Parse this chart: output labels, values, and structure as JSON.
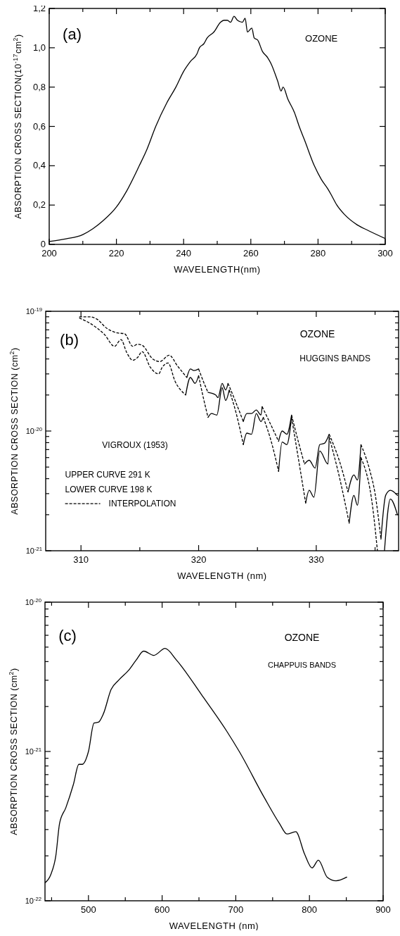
{
  "chart_data": [
    {
      "type": "line",
      "xlabel": "WAVELENGTH(nm)",
      "ylabel": "ABSORPTION CROSS SECTION(10$^{-17}$cm$^{2}$)",
      "annotations": [
        "(a)",
        "OZONE"
      ],
      "xlim": [
        200,
        300
      ],
      "xticks": [
        200,
        {
          "value": 210,
          "label": null
        },
        220,
        {
          "value": 230,
          "label": null
        },
        240,
        {
          "value": 250,
          "label": null
        },
        260,
        {
          "value": 270,
          "label": null
        },
        280,
        {
          "value": 290,
          "label": null
        },
        300
      ],
      "ylim": [
        0,
        1.2
      ],
      "yticks": [
        0,
        {
          "value": 0.2,
          "label": "0,2"
        },
        {
          "value": 0.4,
          "label": "0,4"
        },
        {
          "value": 0.6,
          "label": "0,6"
        },
        {
          "value": 0.8,
          "label": "0,8"
        },
        {
          "value": 1.0,
          "label": "1,0"
        },
        {
          "value": 1.2,
          "label": "1,2"
        }
      ],
      "series": [
        {
          "color": "#000000",
          "line_style": "solid",
          "x": [
            200,
            205,
            210,
            213,
            216,
            220,
            223,
            226.8,
            229,
            231.7,
            235,
            237.7,
            240,
            242,
            244,
            244.7,
            246,
            247,
            249,
            251,
            252,
            253,
            254,
            255,
            256,
            257.5,
            258.3,
            259,
            260.3,
            261,
            262,
            263.5,
            265,
            266,
            268,
            269,
            269.6,
            271,
            273,
            274.4,
            276,
            278.9,
            281,
            283,
            284,
            285.6,
            288,
            291.6,
            295,
            300
          ],
          "values": [
            0.015,
            0.028,
            0.05,
            0.08,
            0.12,
            0.19,
            0.27,
            0.4,
            0.48,
            0.6,
            0.72,
            0.8,
            0.88,
            0.93,
            0.97,
            1.0,
            1.02,
            1.05,
            1.08,
            1.13,
            1.14,
            1.14,
            1.13,
            1.16,
            1.14,
            1.13,
            1.15,
            1.08,
            1.1,
            1.05,
            1.04,
            0.98,
            0.95,
            0.92,
            0.83,
            0.78,
            0.8,
            0.74,
            0.67,
            0.6,
            0.53,
            0.4,
            0.33,
            0.28,
            0.25,
            0.2,
            0.15,
            0.1,
            0.07,
            0.03
          ]
        }
      ]
    },
    {
      "type": "line",
      "xlabel": "WAVELENGTH (nm)",
      "ylabel": "ABSORPTION CROSS SECTION (cm$^{2}$)",
      "annotations": [
        "(b)",
        "OZONE",
        "HUGGINS BANDS",
        "VIGROUX (1953)",
        "UPPER CURVE 291 K",
        "LOWER CURVE 198 K"
      ],
      "log": "y",
      "legend": "left",
      "xlim": [
        307,
        337
      ],
      "xticks": [
        310,
        {
          "value": 315,
          "label": null
        },
        320,
        {
          "value": 325,
          "label": null
        },
        330,
        {
          "value": 335,
          "label": null
        }
      ],
      "ylim": [
        1e-21,
        1e-19
      ],
      "yticks": [
        {
          "value": 1e-21,
          "label": "10$^{-21}$"
        },
        {
          "value": 2e-21,
          "label": null
        },
        {
          "value": 3e-21,
          "label": null
        },
        {
          "value": 4e-21,
          "label": null
        },
        {
          "value": 5e-21,
          "label": null
        },
        {
          "value": 6e-21,
          "label": null
        },
        {
          "value": 7e-21,
          "label": null
        },
        {
          "value": 8e-21,
          "label": null
        },
        {
          "value": 9e-21,
          "label": null
        },
        {
          "value": 1e-20,
          "label": "10$^{-20}$"
        },
        {
          "value": 2e-20,
          "label": null
        },
        {
          "value": 3e-20,
          "label": null
        },
        {
          "value": 4e-20,
          "label": null
        },
        {
          "value": 5e-20,
          "label": null
        },
        {
          "value": 6e-20,
          "label": null
        },
        {
          "value": 7e-20,
          "label": null
        },
        {
          "value": 8e-20,
          "label": null
        },
        {
          "value": 9e-20,
          "label": null
        },
        {
          "value": 1e-19,
          "label": "10$^{-19}$"
        }
      ],
      "series": [
        {
          "name": "INTERPOLATION",
          "color": "#000000",
          "line_style": "dashed",
          "x": [
            309.85,
            310.7,
            311.35,
            312.2,
            313.1,
            313.7,
            314.4,
            314.8,
            315.2,
            316.1,
            316.7,
            317.5,
            318.2,
            319.0
          ],
          "values": [
            9e-20,
            9e-20,
            8.6e-20,
            7.2e-20,
            6.6e-20,
            6.5e-20,
            5.1e-20,
            5.3e-20,
            5.2e-20,
            4e-20,
            3.8e-20,
            4.3e-20,
            3.5e-20,
            2.8e-20
          ]
        },
        {
          "color": "#000000",
          "line_style": "dashed",
          "x": [
            320.0,
            320.4,
            320.8
          ],
          "values": [
            3.3e-20,
            2.6e-20,
            2.1e-20
          ]
        },
        {
          "color": "#000000",
          "line_style": "dashed",
          "x": [
            322.5,
            323.1,
            323.8
          ],
          "values": [
            2.5e-20,
            1.8e-20,
            1.2e-20
          ]
        },
        {
          "color": "#000000",
          "line_style": "dashed",
          "x": [
            325.4,
            326.1,
            326.8
          ],
          "values": [
            1.6e-20,
            1.15e-20,
            8.2e-21
          ]
        },
        {
          "color": "#000000",
          "line_style": "dashed",
          "x": [
            327.9,
            328.5,
            329.0
          ],
          "values": [
            1.36e-20,
            8e-21,
            5.3e-21
          ]
        },
        {
          "color": "#000000",
          "line_style": "dashed",
          "x": [
            331.1,
            332.0,
            332.7
          ],
          "values": [
            9.4e-21,
            5.5e-21,
            3.1e-21
          ]
        },
        {
          "color": "#000000",
          "line_style": "dashed",
          "x": [
            333.8,
            334.55,
            335.0,
            335.5
          ],
          "values": [
            7.7e-21,
            4.7e-21,
            3e-21,
            1.25e-21
          ]
        },
        {
          "color": "#000000",
          "line_style": "dashed",
          "x": [
            309.85,
            310.9,
            312.0,
            312.85,
            313.4,
            313.9,
            314.4,
            314.8,
            315.2,
            315.9,
            316.6,
            316.9,
            317.4,
            318.0,
            318.9
          ],
          "values": [
            8.8e-20,
            7.8e-20,
            6.4e-20,
            5.1e-20,
            5.8e-20,
            4.5e-20,
            3.9e-20,
            4.1e-20,
            4.6e-20,
            3.4e-20,
            3e-20,
            3.4e-20,
            3.7e-20,
            2.6e-20,
            2e-20
          ]
        },
        {
          "color": "#000000",
          "line_style": "dashed",
          "x": [
            320.0,
            320.4,
            320.8
          ],
          "values": [
            2.9e-20,
            1.9e-20,
            1.3e-20
          ]
        },
        {
          "color": "#000000",
          "line_style": "dashed",
          "x": [
            322.6,
            323.2,
            323.8
          ],
          "values": [
            2.2e-20,
            1.4e-20,
            7.7e-21
          ]
        },
        {
          "color": "#000000",
          "line_style": "dashed",
          "x": [
            325.5,
            326.2,
            326.8
          ],
          "values": [
            1.3e-20,
            8e-21,
            4.6e-21
          ]
        },
        {
          "color": "#000000",
          "line_style": "dashed",
          "x": [
            327.9,
            328.6,
            329.1
          ],
          "values": [
            1.3e-20,
            5e-21,
            2.5e-21
          ]
        },
        {
          "color": "#000000",
          "line_style": "dashed",
          "x": [
            331.1,
            332.0,
            332.8
          ],
          "values": [
            8.9e-21,
            4e-21,
            1.7e-21
          ]
        },
        {
          "color": "#000000",
          "line_style": "dashed",
          "x": [
            333.8,
            334.8,
            335.2
          ],
          "values": [
            6e-21,
            2.3e-21,
            1e-21
          ]
        },
        {
          "color": "#000000",
          "line_style": "solid",
          "x": [
            319.0,
            319.3,
            319.6,
            320.0
          ],
          "values": [
            2.8e-20,
            3.3e-20,
            3.2e-20,
            3.3e-20
          ]
        },
        {
          "color": "#000000",
          "line_style": "solid",
          "x": [
            320.8,
            321.45,
            321.65,
            322.0,
            322.3,
            322.5
          ],
          "values": [
            2.1e-20,
            2e-20,
            1.9e-20,
            2.5e-20,
            2.2e-20,
            2.5e-20
          ]
        },
        {
          "color": "#000000",
          "line_style": "solid",
          "x": [
            323.8,
            324.1,
            324.5,
            324.9,
            325.3,
            325.4
          ],
          "values": [
            1.2e-20,
            1.4e-20,
            1.4e-20,
            1.5e-20,
            1.36e-20,
            1.6e-20
          ]
        },
        {
          "color": "#000000",
          "line_style": "solid",
          "x": [
            326.8,
            327.1,
            327.5,
            327.9
          ],
          "values": [
            8.2e-21,
            1e-20,
            9.4e-21,
            1.36e-20
          ]
        },
        {
          "color": "#000000",
          "line_style": "solid",
          "x": [
            329.0,
            329.4,
            329.9,
            330.3,
            330.7,
            331.1
          ],
          "values": [
            5.3e-21,
            5.7e-21,
            4.9e-21,
            7.7e-21,
            7.9e-21,
            9.4e-21
          ]
        },
        {
          "color": "#000000",
          "line_style": "solid",
          "x": [
            332.7,
            333.2,
            333.5,
            333.8
          ],
          "values": [
            3.1e-21,
            4.3e-21,
            3.9e-21,
            7.7e-21
          ]
        },
        {
          "color": "#000000",
          "line_style": "solid",
          "x": [
            335.5,
            335.9,
            336.3,
            336.9
          ],
          "values": [
            1.25e-21,
            2.9e-21,
            3.2e-21,
            2.9e-21
          ]
        },
        {
          "color": "#000000",
          "line_style": "solid",
          "x": [
            318.9,
            319.3,
            319.7,
            320.0
          ],
          "values": [
            2e-20,
            2.8e-20,
            2.5e-20,
            2.9e-20
          ]
        },
        {
          "color": "#000000",
          "line_style": "solid",
          "x": [
            320.8,
            321.1,
            321.55,
            322.0,
            322.3,
            322.6
          ],
          "values": [
            1.3e-20,
            1.4e-20,
            1.36e-20,
            2.3e-20,
            1.8e-20,
            2.2e-20
          ]
        },
        {
          "color": "#000000",
          "line_style": "solid",
          "x": [
            323.8,
            324.1,
            324.5,
            324.9,
            325.3,
            325.5
          ],
          "values": [
            7.7e-21,
            9.6e-21,
            9.4e-21,
            1.4e-20,
            1.2e-20,
            1.3e-20
          ]
        },
        {
          "color": "#000000",
          "line_style": "solid",
          "x": [
            326.8,
            327.1,
            327.5,
            327.9
          ],
          "values": [
            4.6e-21,
            8.1e-21,
            7.7e-21,
            1.3e-20
          ]
        },
        {
          "color": "#000000",
          "line_style": "solid",
          "x": [
            329.1,
            329.4,
            329.8,
            330.3,
            331.0,
            331.1
          ],
          "values": [
            2.5e-21,
            3.2e-21,
            2.8e-21,
            6.8e-21,
            5.3e-21,
            8.9e-21
          ]
        },
        {
          "color": "#000000",
          "line_style": "solid",
          "x": [
            332.8,
            333.2,
            333.5,
            333.8
          ],
          "values": [
            1.7e-21,
            2.9e-21,
            2.4e-21,
            6e-21
          ]
        },
        {
          "color": "#000000",
          "line_style": "solid",
          "x": [
            335.8,
            336.3,
            336.9
          ],
          "values": [
            1e-21,
            2.7e-21,
            2e-21
          ]
        }
      ]
    },
    {
      "type": "line",
      "xlabel": "WAVELENGTH (nm)",
      "ylabel": "ABSORPTION CROSS SECTION (cm$^{2}$)",
      "annotations": [
        "(c)",
        "OZONE",
        "CHAPPUIS BANDS"
      ],
      "log": "y",
      "xlim": [
        441,
        900
      ],
      "xticks": [
        {
          "value": 450,
          "label": null
        },
        500,
        {
          "value": 550,
          "label": null
        },
        600,
        {
          "value": 650,
          "label": null
        },
        700,
        {
          "value": 750,
          "label": null
        },
        800,
        {
          "value": 850,
          "label": null
        },
        900
      ],
      "ylim": [
        1e-22,
        1e-20
      ],
      "yticks": [
        {
          "value": 1e-22,
          "label": "10$^{-22}$"
        },
        {
          "value": 2e-22,
          "label": null
        },
        {
          "value": 3e-22,
          "label": null
        },
        {
          "value": 4e-22,
          "label": null
        },
        {
          "value": 5e-22,
          "label": null
        },
        {
          "value": 6e-22,
          "label": null
        },
        {
          "value": 7e-22,
          "label": null
        },
        {
          "value": 8e-22,
          "label": null
        },
        {
          "value": 9e-22,
          "label": null
        },
        {
          "value": 1e-21,
          "label": "10$^{-21}$"
        },
        {
          "value": 2e-21,
          "label": null
        },
        {
          "value": 3e-21,
          "label": null
        },
        {
          "value": 4e-21,
          "label": null
        },
        {
          "value": 5e-21,
          "label": null
        },
        {
          "value": 6e-21,
          "label": null
        },
        {
          "value": 7e-21,
          "label": null
        },
        {
          "value": 8e-21,
          "label": null
        },
        {
          "value": 9e-21,
          "label": null
        },
        {
          "value": 1e-20,
          "label": "10$^{-20}$"
        }
      ],
      "series": [
        {
          "color": "#000000",
          "line_style": "solid",
          "x": [
            441,
            448.9,
            455.7,
            460.8,
            469.3,
            479.5,
            487.0,
            491.5,
            500,
            507.5,
            513.6,
            520.5,
            530.7,
            540.9,
            554.6,
            564.8,
            575,
            588.7,
            604,
            619.4,
            653.5,
            687.6,
            704.7,
            738.8,
            759.2,
            769.5,
            781.4,
            793.3,
            803.6,
            812.1,
            824,
            836,
            850.6
          ],
          "values": [
            1.32e-22,
            1.5e-22,
            2e-22,
            3.3e-22,
            4.2e-22,
            6e-22,
            8.2e-22,
            8.2e-22,
            1e-21,
            1.55e-21,
            1.57e-21,
            1.8e-21,
            2.6e-21,
            3e-21,
            3.5e-21,
            4.1e-21,
            4.7e-21,
            4.4e-21,
            4.9e-21,
            4.1e-21,
            2.4e-21,
            1.37e-21,
            1e-21,
            4.9e-22,
            3.3e-22,
            2.8e-22,
            2.9e-22,
            2.06e-22,
            1.66e-22,
            1.87e-22,
            1.44e-22,
            1.36e-22,
            1.44e-22
          ]
        }
      ]
    }
  ]
}
